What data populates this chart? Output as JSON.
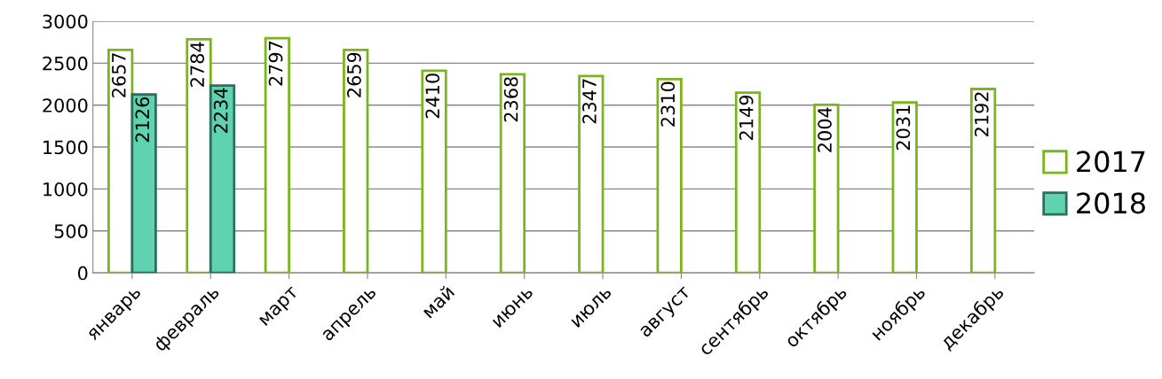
{
  "chart_data": {
    "type": "bar",
    "categories": [
      "январь",
      "февраль",
      "март",
      "апрель",
      "май",
      "июнь",
      "июль",
      "август",
      "сентябрь",
      "октябрь",
      "ноябрь",
      "декабрь"
    ],
    "series": [
      {
        "name": "2017",
        "color": "#ffffff",
        "values": [
          2657,
          2784,
          2797,
          2659,
          2410,
          2368,
          2347,
          2310,
          2149,
          2004,
          2031,
          2192
        ]
      },
      {
        "name": "2018",
        "color": "#5fd3b0",
        "values": [
          2126,
          2234,
          null,
          null,
          null,
          null,
          null,
          null,
          null,
          null,
          null,
          null
        ]
      }
    ],
    "ylim": [
      0,
      3000
    ],
    "yticks": [
      0,
      500,
      1000,
      1500,
      2000,
      2500,
      3000
    ],
    "grid": "y",
    "legend": "right",
    "data_labels": true
  }
}
